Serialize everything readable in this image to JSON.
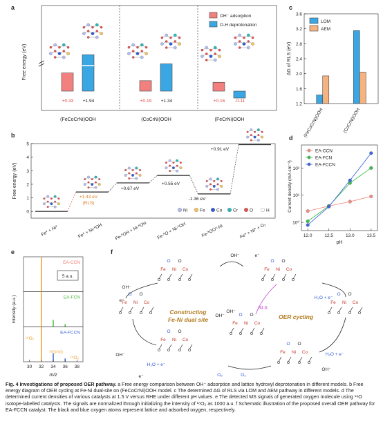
{
  "panel_labels": {
    "a": "a",
    "b": "b",
    "c": "c",
    "d": "d",
    "e": "e",
    "f": "f"
  },
  "chart_data": [
    {
      "id": "a",
      "type": "bar",
      "ylabel": "Free energy (eV)",
      "legend": {
        "placement": "top-right",
        "entries": [
          "OH⁻ adsorption",
          "O-H deprotonation"
        ]
      },
      "colors": {
        "adsorption": "#f2807f",
        "deprotonation": "#3aa6e3",
        "negative_text": "#e0463e"
      },
      "groups": [
        {
          "label": "(FeCoCrNi)OOH",
          "adsorption": 0.33,
          "deprotonation": 1.94,
          "adsorption_label": "+0.33",
          "deprotonation_label": "+1.94"
        },
        {
          "label": "(CoCrNi)OOH",
          "adsorption": 0.19,
          "deprotonation": 1.34,
          "adsorption_label": "+0.19",
          "deprotonation_label": "+1.34"
        },
        {
          "label": "(FeCrNi)OOH",
          "adsorption": 0.16,
          "deprotonation": -0.11,
          "adsorption_label": "+0.16",
          "deprotonation_label": "-0.11"
        }
      ]
    },
    {
      "id": "b",
      "type": "line",
      "ylabel": "Free energy (eV)",
      "ylim": [
        -0.5,
        5
      ],
      "yticks": [
        "0",
        "1",
        "2",
        "3",
        "4",
        "5"
      ],
      "steps": [
        {
          "label": "Fe* + Ni*",
          "energy": 0
        },
        {
          "label": "Fe* + Ni-*OH",
          "energy": 1.43
        },
        {
          "label": "Fe-*OH + Ni-*OH",
          "energy": 2.1
        },
        {
          "label": "Fe-*O + Ni-*OH",
          "energy": 2.65
        },
        {
          "label": "Fe-*OO*-Ni",
          "energy": 1.29
        },
        {
          "label": "Fe* + Ni* + O₂",
          "energy": 4.92
        }
      ],
      "annotations": [
        "+1.43 eV",
        "(RLS)",
        "+0.67 eV",
        "+0.55 eV",
        "-1.36 eV",
        "+0.91 eV"
      ],
      "legend": [
        {
          "label": "Ni",
          "color": "#b3bdf2"
        },
        {
          "label": "Fe",
          "color": "#f4c35b"
        },
        {
          "label": "Co",
          "color": "#2d5bd8"
        },
        {
          "label": "Cr",
          "color": "#29b8b8"
        },
        {
          "label": "O",
          "color": "#ee4b4b"
        },
        {
          "label": "H",
          "color": "#ffffff"
        }
      ]
    },
    {
      "id": "c",
      "type": "bar",
      "ylabel": "ΔG of RLS (eV)",
      "ylim": [
        1.2,
        3.6
      ],
      "yticks": [
        "1.2",
        "1.6",
        "2.0",
        "2.4",
        "2.8",
        "3.2",
        "3.6"
      ],
      "categories": [
        "(FeCoCrNi)OOH",
        "(CoCrNi)OOH"
      ],
      "series": [
        {
          "name": "LOM",
          "values": [
            1.43,
            3.15
          ],
          "color": "#3aa6e3"
        },
        {
          "name": "AEM",
          "values": [
            1.94,
            2.04
          ],
          "color": "#f6b27f"
        }
      ],
      "legend_placement": "top-left"
    },
    {
      "id": "d",
      "type": "scatter",
      "xlabel": "pH",
      "ylabel": "Current density (mA cm⁻²)",
      "xticks": [
        "12.0",
        "12.5",
        "13.0",
        "13.5"
      ],
      "yticks": [
        "10⁰",
        "10¹",
        "10²"
      ],
      "yscale": "log",
      "xlim": [
        11.85,
        13.65
      ],
      "series": [
        {
          "name": "EA-CCN",
          "color": "#f08f86",
          "x": [
            12.0,
            12.5,
            13.0,
            13.5
          ],
          "y": [
            2.6,
            4.0,
            5.8,
            9.0
          ]
        },
        {
          "name": "EA-FCN",
          "color": "#3bbf4a",
          "x": [
            12.0,
            12.5,
            13.0,
            13.5
          ],
          "y": [
            1.1,
            4.0,
            28,
            100
          ]
        },
        {
          "name": "EA-FCCN",
          "color": "#3e67d8",
          "x": [
            12.0,
            12.5,
            13.0,
            13.5
          ],
          "y": [
            0.8,
            3.8,
            35,
            350
          ]
        }
      ],
      "legend_placement": "top-left"
    },
    {
      "id": "e",
      "type": "line",
      "xlabel": "m/z",
      "ylabel": "Intensity (a.u.)",
      "xticks": [
        "30",
        "32",
        "34",
        "36",
        "38"
      ],
      "scale_label": "5 a.u.",
      "panels": [
        {
          "name": "EA-CCN",
          "color": "#f07a6b",
          "peaks": [
            {
              "x": 32,
              "y": 1000
            }
          ]
        },
        {
          "name": "EA-FCN",
          "color": "#4bbf3c",
          "peaks": [
            {
              "x": 32,
              "y": 1000
            },
            {
              "x": 34,
              "y": 2.5
            },
            {
              "x": 36,
              "y": 1.0
            }
          ]
        },
        {
          "name": "EA-FCCN",
          "color": "#3e67d8",
          "peaks": [
            {
              "x": 32,
              "y": 1000
            },
            {
              "x": 34,
              "y": 3.0
            },
            {
              "x": 36,
              "y": 1.2
            }
          ]
        }
      ],
      "peak_labels": [
        "¹⁶O₂",
        "¹⁶O¹⁸O",
        "¹⁸O₂"
      ],
      "highlight_color": "#f0a02a"
    }
  ],
  "panel_f": {
    "center_title": [
      "Constructing",
      "Fe-Ni dual site"
    ],
    "oer_title": "OER cycling",
    "rls": "RLS",
    "labels": [
      "OH⁻",
      "e⁻",
      "OH⁻",
      "e⁻",
      "OH⁻",
      "OH⁻",
      "H₂O + e⁻",
      "H₂O + e⁻",
      "OH⁻",
      "e⁻",
      "O₂",
      "O₂",
      "H₂O + e⁻",
      "OH⁻"
    ],
    "metals": [
      "Fe",
      "Ni",
      "Co"
    ]
  },
  "caption": {
    "title": "Fig. 4 Investigations of proposed OER pathway.",
    "body": " a Free energy comparison between OH⁻ adsorption and lattice hydroxyl deprotonation in different models. b Free energy diagram of OER cycling at Fe-Ni dual-site on (FeCoCrNi)OOH model. c The determined ΔG of RLS via LOM and AEM pathway in different models. d The determined current densities of various catalysts at 1.5 V versus RHE under different pH values. e The detected MS signals of generated oxygen molecule using ¹⁸O isotope-labelled catalysts. The signals are normalized through initializing the intensity of ¹⁶O₂ as 1000 a.u. f Schematic illustration of the proposed overall OER pathway for EA-FCCN catalyst. The black and blue oxygen atoms represent lattice and adsorbed oxygen, respectively."
  }
}
